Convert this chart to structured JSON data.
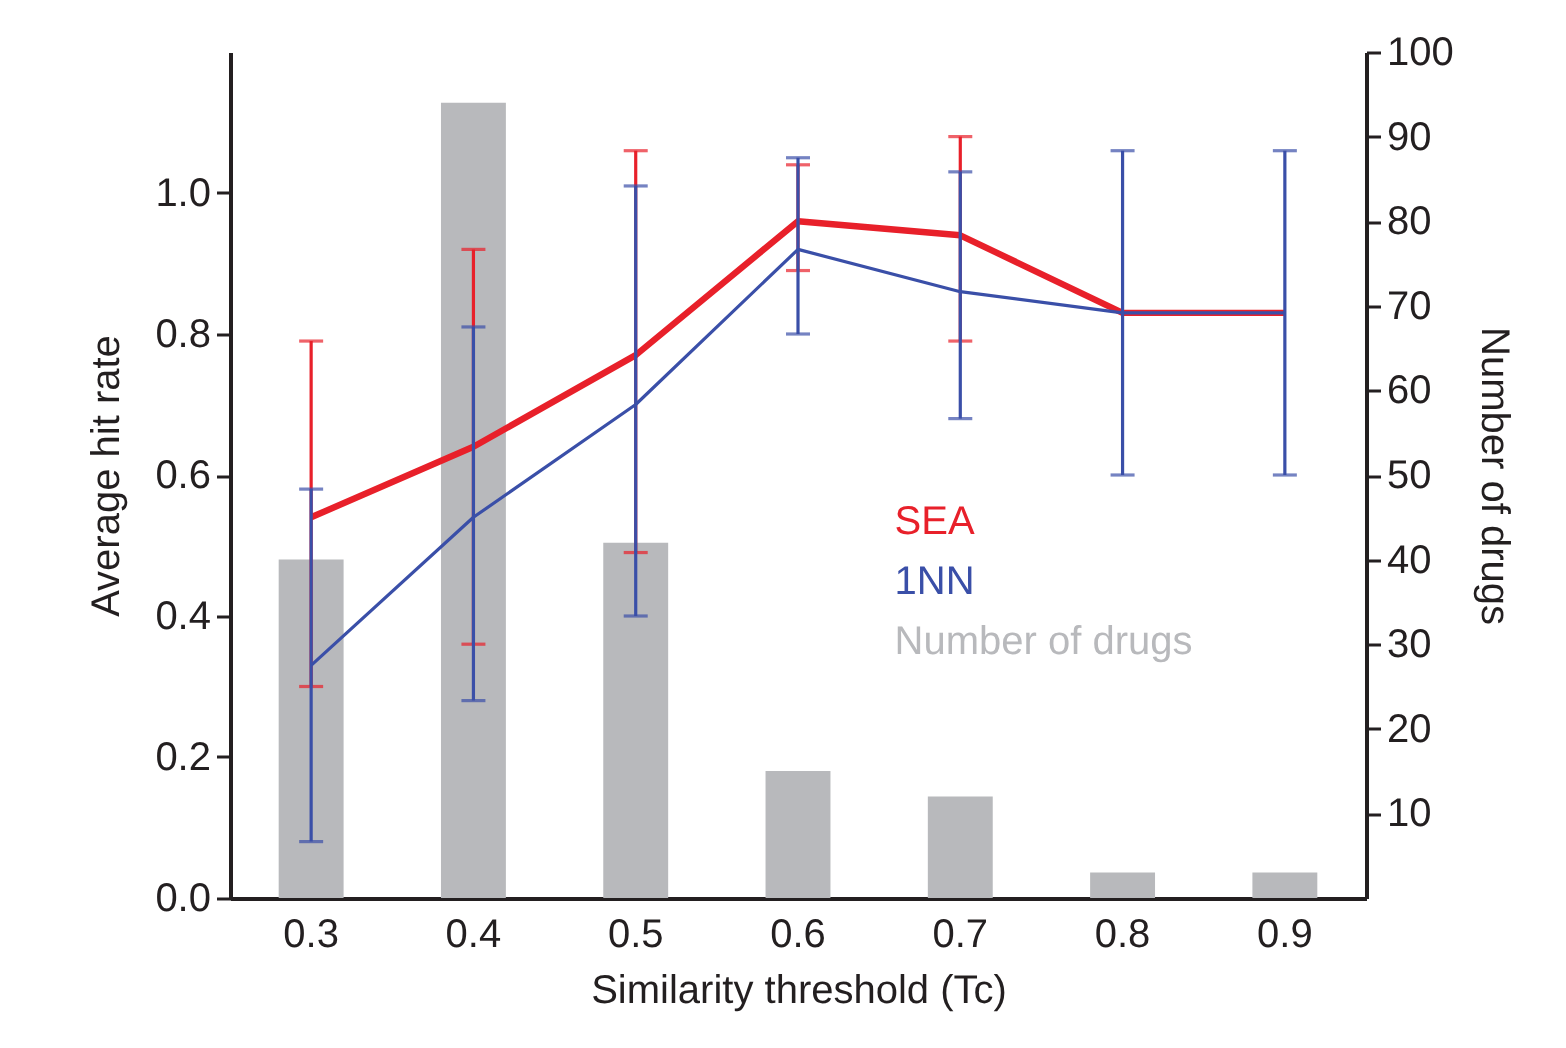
{
  "chart_data": {
    "type": "line",
    "xlabel": "Similarity threshold (Tc)",
    "ylabel": "Average hit rate",
    "y2label": "Number of drugs",
    "categories": [
      "0.3",
      "0.4",
      "0.5",
      "0.6",
      "0.7",
      "0.8",
      "0.9"
    ],
    "series": [
      {
        "name": "Number of drugs",
        "type": "bar",
        "axis": "y2",
        "color": "#b8b9bc",
        "values": [
          40,
          94,
          42,
          15,
          12,
          3,
          3
        ]
      },
      {
        "name": "SEA",
        "color": "#e8202a",
        "values": [
          0.54,
          0.64,
          0.77,
          0.96,
          0.94,
          0.83,
          0.83
        ],
        "errors": [
          [
            0.3,
            0.79
          ],
          [
            0.36,
            0.92
          ],
          [
            0.49,
            1.06
          ],
          [
            0.89,
            1.04
          ],
          [
            0.79,
            1.08
          ],
          null,
          null
        ]
      },
      {
        "name": "1NN",
        "color": "#3a4fa8",
        "values": [
          0.33,
          0.54,
          0.7,
          0.92,
          0.86,
          0.83,
          0.83
        ],
        "errors": [
          [
            0.08,
            0.58
          ],
          [
            0.28,
            0.81
          ],
          [
            0.4,
            1.01
          ],
          [
            0.8,
            1.05
          ],
          [
            0.68,
            1.03
          ],
          [
            0.6,
            1.06
          ],
          [
            0.6,
            1.06
          ]
        ]
      }
    ],
    "ylim": [
      0,
      1.2
    ],
    "yticks": [
      {
        "value": 0,
        "label": "0.0"
      },
      0.2,
      0.4,
      0.6,
      0.8,
      {
        "value": 1,
        "label": "1.0"
      }
    ],
    "y2lim": [
      0,
      100
    ],
    "y2ticks": [
      10,
      20,
      30,
      40,
      50,
      60,
      70,
      80,
      90,
      100
    ],
    "legend": "right",
    "grid": false
  }
}
